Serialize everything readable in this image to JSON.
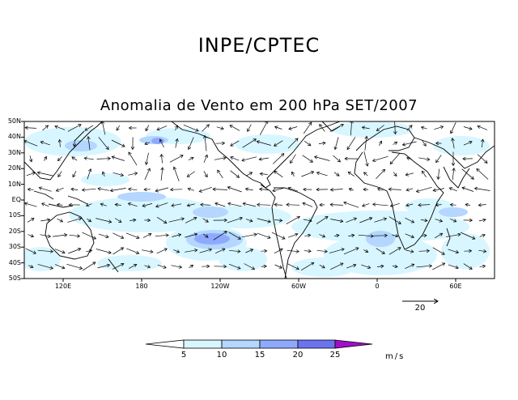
{
  "header": {
    "org_title": "INPE/CPTEC"
  },
  "map": {
    "title": "Anomalia de Vento em 200 hPa SET/2007",
    "lat_labels": [
      "50N",
      "40N",
      "30N",
      "20N",
      "10N",
      "EQ",
      "10S",
      "20S",
      "30S",
      "40S",
      "50S"
    ],
    "lon_labels": [
      "120E",
      "180",
      "120W",
      "60W",
      "0",
      "60E"
    ],
    "reference_vector": {
      "label": "20",
      "units": "m/s"
    },
    "colors": {
      "level_5_10": "#d8f6ff",
      "level_10_15": "#b4d6ff",
      "level_15_20": "#8eaaff",
      "level_20_25": "#6a74f0",
      "level_25_plus": "#a010c8",
      "coastline": "#000000"
    }
  },
  "colorbar": {
    "ticks": [
      "5",
      "10",
      "15",
      "20",
      "25"
    ],
    "units": "m/s"
  }
}
